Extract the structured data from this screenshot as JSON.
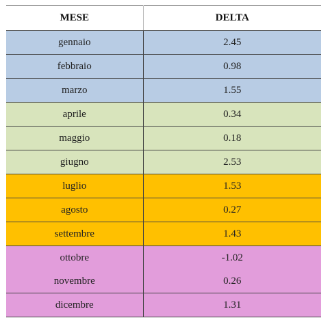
{
  "table": {
    "headers": {
      "month": "MESE",
      "delta": "DELTA"
    },
    "rows": [
      {
        "month": "gennaio",
        "delta": "2.45",
        "group": "blue"
      },
      {
        "month": "febbraio",
        "delta": "0.98",
        "group": "blue"
      },
      {
        "month": "marzo",
        "delta": "1.55",
        "group": "blue"
      },
      {
        "month": "aprile",
        "delta": "0.34",
        "group": "green"
      },
      {
        "month": "maggio",
        "delta": "0.18",
        "group": "green"
      },
      {
        "month": "giugno",
        "delta": "2.53",
        "group": "green"
      },
      {
        "month": "luglio",
        "delta": "1.53",
        "group": "orange"
      },
      {
        "month": "agosto",
        "delta": "0.27",
        "group": "orange"
      },
      {
        "month": "settembre",
        "delta": "1.43",
        "group": "orange"
      },
      {
        "month": "ottobre",
        "delta": "-1.02",
        "group": "pink"
      },
      {
        "month": "novembre",
        "delta": "0.26",
        "group": "pink"
      },
      {
        "month": "dicembre",
        "delta": "1.31",
        "group": "pink"
      }
    ],
    "group_colors": {
      "blue": "#b8cce4",
      "green": "#d8e4bc",
      "orange": "#ffc000",
      "pink": "#e29ddb"
    }
  }
}
